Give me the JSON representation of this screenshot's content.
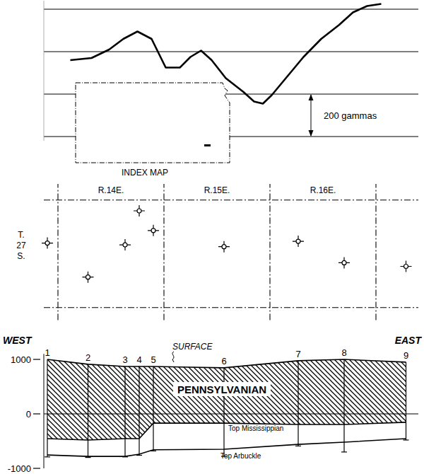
{
  "chart_data": [
    {
      "type": "line",
      "x": [
        0.7,
        1.9,
        2.9,
        3.7,
        4.5,
        5.3,
        6.1,
        6.9,
        7.5,
        8.1,
        8.7,
        9.5,
        10.5,
        11.1,
        11.6,
        12.1,
        12.9,
        13.9,
        14.9,
        15.9,
        16.7,
        17.5,
        18.3
      ],
      "values": [
        360,
        370,
        410,
        460,
        495,
        460,
        325,
        325,
        375,
        405,
        360,
        275,
        210,
        165,
        155,
        195,
        275,
        375,
        460,
        525,
        585,
        615,
        625
      ],
      "color": "#000000",
      "xlim": [
        -0.8,
        20.4
      ],
      "ylim": [
        -20,
        640
      ],
      "yticks": [
        0,
        200,
        400,
        600
      ],
      "grid": true,
      "tick_labels": false,
      "scale_bar": {
        "value": 200,
        "label": "200 gammas"
      },
      "annotations": [
        "INDEX MAP"
      ]
    },
    {
      "type": "scatter",
      "x": [
        -0.6,
        1.7,
        3.8,
        4.6,
        5.4,
        9.4,
        13.6,
        16.2,
        19.7
      ],
      "values": [
        3.6,
        1.7,
        3.5,
        5.4,
        4.3,
        3.4,
        3.7,
        2.5,
        2.3
      ],
      "marker": "well",
      "xlim": [
        -0.8,
        20.4
      ],
      "ylim": [
        -0.7,
        6.9
      ],
      "xticks": [
        0,
        6,
        12,
        18
      ],
      "yticks": [
        0,
        6
      ],
      "grid": true,
      "tick_labels": false,
      "column_labels": [
        "R.14E.",
        "R.15E.",
        "R.16E."
      ],
      "annotations": [
        "T. 27 S."
      ]
    },
    {
      "type": "cross_section",
      "x": [
        -0.6,
        1.7,
        3.8,
        4.6,
        5.4,
        9.4,
        13.6,
        16.2,
        19.7
      ],
      "well_labels": [
        "1",
        "2",
        "3",
        "4",
        "5",
        "6",
        "7",
        "8",
        "9"
      ],
      "series": [
        {
          "name": "SURFACE",
          "values": [
            1000,
            910,
            870,
            870,
            870,
            845,
            975,
            1000,
            950
          ]
        },
        {
          "name": "Top Mississippian",
          "values": [
            -455,
            -480,
            -455,
            -455,
            -170,
            -170,
            -195,
            -195,
            -155
          ]
        },
        {
          "name": "Top Arbuckle",
          "values": [
            -755,
            -780,
            -780,
            -740,
            -660,
            -650,
            -560,
            -520,
            -455
          ]
        }
      ],
      "well_depths": [
        -790,
        -800,
        -790,
        -760,
        -680,
        -780,
        -590,
        -700,
        -480
      ],
      "xlim": [
        -0.8,
        20.4
      ],
      "ylim": [
        -1000,
        1100
      ],
      "yticks": [
        -1000,
        0,
        1000
      ],
      "annotations": [
        "WEST",
        "EAST",
        "PENNSYLVANIAN"
      ]
    }
  ]
}
